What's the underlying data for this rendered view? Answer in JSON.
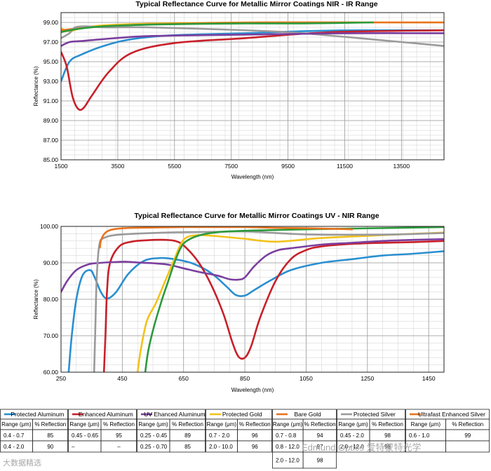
{
  "charts": [
    {
      "title": "Typical Reflectance Curve for Metallic Mirror Coatings NIR - IR Range",
      "xlabel": "Wavelength (nm)",
      "ylabel": "Reflectance (%)",
      "xlim": [
        1500,
        15000
      ],
      "ylim": [
        85,
        100
      ],
      "xticks": [
        "1500",
        "3500",
        "5500",
        "7500",
        "9500",
        "11500",
        "13500"
      ],
      "yticks": [
        "85.00",
        "87.00",
        "89.00",
        "91.00",
        "93.00",
        "95.00",
        "97.00",
        "99.00"
      ]
    },
    {
      "title": "Typical Reflectance Curve for Metallic Mirror Coatings UV - NIR Range",
      "xlabel": "Wavelength (nm)",
      "ylabel": "Reflectance (%)",
      "xlim": [
        250,
        1500
      ],
      "ylim": [
        60,
        100
      ],
      "xticks": [
        "250",
        "450",
        "650",
        "850",
        "1050",
        "1250",
        "1450"
      ],
      "yticks": [
        "60.00",
        "70.00",
        "80.00",
        "90.00",
        "100.00"
      ]
    }
  ],
  "chart_data": [
    {
      "type": "line",
      "title": "Typical Reflectance Curve for Metallic Mirror Coatings NIR - IR Range",
      "xlabel": "Wavelength (nm)",
      "ylabel": "Reflectance (%)",
      "xlim": [
        1500,
        15000
      ],
      "ylim": [
        85,
        100
      ],
      "grid": true,
      "series": [
        {
          "name": "Protected Aluminum",
          "color": "#2a8fd0",
          "x": [
            1500,
            1800,
            2200,
            3000,
            4000,
            5500,
            8000,
            10000,
            12000,
            15000
          ],
          "y": [
            93.0,
            95.0,
            95.7,
            96.6,
            97.3,
            97.7,
            97.9,
            98.1,
            98.2,
            98.2
          ]
        },
        {
          "name": "Enhanced Aluminum",
          "color": "#c8202a",
          "x": [
            1500,
            1700,
            1900,
            2100,
            2300,
            2600,
            3200,
            4000,
            5500,
            8000,
            11000,
            15000
          ],
          "y": [
            96.0,
            94.5,
            91.5,
            90.2,
            90.3,
            91.6,
            94.0,
            95.9,
            96.9,
            97.4,
            98.0,
            98.2
          ]
        },
        {
          "name": "Protected Gold",
          "color": "#f2c21b",
          "x": [
            1500,
            1800,
            2200,
            3000,
            5000,
            8000,
            12000,
            15000
          ],
          "y": [
            98.4,
            98.1,
            98.4,
            98.7,
            98.9,
            99.0,
            99.0,
            99.0
          ]
        },
        {
          "name": "Bare Gold",
          "color": "#e8731e",
          "x": [
            1500,
            3000,
            6000,
            9000,
            12000,
            15000
          ],
          "y": [
            98.2,
            98.6,
            98.9,
            99.0,
            99.0,
            99.0
          ]
        },
        {
          "name": "Protected Silver",
          "color": "#9a9a9a",
          "x": [
            1500,
            1800,
            2000,
            2400,
            3000,
            4500,
            7000,
            9500,
            12000,
            15000
          ],
          "y": [
            97.4,
            97.9,
            98.5,
            98.6,
            98.5,
            98.5,
            98.3,
            98.0,
            97.4,
            96.6
          ]
        },
        {
          "name": "UV Enhanced Aluminum",
          "color": "#7b3f9e",
          "x": [
            1500,
            1800,
            2200,
            3000,
            4500,
            6500,
            9000,
            12000,
            15000
          ],
          "y": [
            96.6,
            97.0,
            97.1,
            97.3,
            97.6,
            97.7,
            97.8,
            97.9,
            97.9
          ]
        },
        {
          "name": "Ultrafast Enhanced Silver",
          "color": "#2c9a3c",
          "x": [
            1500,
            2000,
            3000,
            5000,
            8000,
            10000,
            12500
          ],
          "y": [
            98.0,
            98.3,
            98.6,
            98.8,
            98.9,
            98.9,
            99.0
          ]
        }
      ]
    },
    {
      "type": "line",
      "title": "Typical Reflectance Curve for Metallic Mirror Coatings UV - NIR Range",
      "xlabel": "Wavelength (nm)",
      "ylabel": "Reflectance (%)",
      "xlim": [
        250,
        1500
      ],
      "ylim": [
        60,
        100
      ],
      "grid": true,
      "series": [
        {
          "name": "Protected Aluminum",
          "color": "#2a8fd0",
          "x": [
            275,
            285,
            300,
            320,
            345,
            360,
            380,
            400,
            430,
            470,
            520,
            570,
            620,
            680,
            740,
            790,
            820,
            850,
            880,
            930,
            1000,
            1100,
            1200,
            1300,
            1400,
            1500
          ],
          "y": [
            60,
            70,
            80,
            86.5,
            88,
            86,
            82,
            80.2,
            82,
            87,
            90.5,
            91.3,
            91,
            89.8,
            87.2,
            83.5,
            81.2,
            81.0,
            82.5,
            85,
            88,
            90,
            91,
            92,
            92.5,
            93.2
          ]
        },
        {
          "name": "Enhanced Aluminum",
          "color": "#c8202a",
          "x": [
            390,
            395,
            400,
            410,
            440,
            480,
            530,
            590,
            630,
            660,
            700,
            740,
            780,
            810,
            830,
            850,
            870,
            900,
            950,
            1000,
            1050,
            1100,
            1200,
            1300,
            1400,
            1500
          ],
          "y": [
            60,
            70,
            82,
            90,
            94.5,
            95.8,
            96.2,
            96.3,
            95.8,
            94,
            90,
            84,
            76,
            68,
            64.2,
            64,
            67,
            75,
            85,
            91,
            93.5,
            94.5,
            95.2,
            95.5,
            95.7,
            96
          ]
        },
        {
          "name": "UV Enhanced Aluminum",
          "color": "#7b3f9e",
          "x": [
            250,
            270,
            300,
            340,
            380,
            420,
            460,
            500,
            550,
            600,
            650,
            700,
            760,
            800,
            830,
            850,
            880,
            920,
            960,
            1000,
            1100,
            1200,
            1300,
            1400,
            1500
          ],
          "y": [
            82,
            85,
            88,
            89.6,
            90,
            90.2,
            90.3,
            90.1,
            89.9,
            89.5,
            88.5,
            87.5,
            86.5,
            85.5,
            85.4,
            86,
            89,
            92,
            93.5,
            94,
            95,
            95.5,
            96,
            96.3,
            96.5
          ]
        },
        {
          "name": "Protected Gold",
          "color": "#f2c21b",
          "x": [
            500,
            510,
            530,
            560,
            590,
            620,
            640,
            660,
            700,
            760,
            850,
            950,
            1100,
            1300,
            1500
          ],
          "y": [
            60,
            66,
            74,
            79,
            85,
            91,
            95,
            97,
            97.6,
            97.3,
            96.6,
            95.8,
            96.8,
            97.6,
            98.3
          ]
        },
        {
          "name": "Protected Silver",
          "color": "#9a9a9a",
          "x": [
            358,
            362,
            366,
            372,
            378,
            385,
            395,
            410,
            450,
            550,
            650,
            750,
            850,
            950,
            1050,
            1200,
            1350,
            1500
          ],
          "y": [
            60,
            72,
            85,
            93,
            96,
            96.6,
            97,
            97.4,
            97.8,
            98.2,
            98.4,
            98.5,
            98.6,
            98.2,
            97.8,
            97.7,
            97.8,
            98.2
          ]
        },
        {
          "name": "Ultrafast Enhanced Silver",
          "color": "#2c9a3c",
          "x": [
            525,
            535,
            555,
            580,
            600,
            620,
            640,
            660,
            700,
            760,
            850,
            950,
            1050,
            1200,
            1350,
            1500
          ],
          "y": [
            60,
            66,
            73,
            80,
            85,
            90,
            94,
            96,
            97.5,
            98.4,
            98.8,
            99,
            99.2,
            99.4,
            99.6,
            99.8
          ]
        },
        {
          "name": "Bare Gold",
          "color": "#e8731e",
          "x": [
            377,
            380,
            390,
            405,
            430,
            480,
            560,
            650,
            750,
            850,
            950,
            1050,
            1150,
            1200
          ],
          "y": [
            94.2,
            96,
            97.8,
            98.8,
            99.3,
            99.6,
            99.7,
            99.8,
            99.8,
            99.8,
            99.6,
            99.5,
            99.3,
            99.2
          ]
        }
      ]
    }
  ],
  "table": [
    {
      "name": "Protected Aluminum",
      "color": "#2a8fd0",
      "rows": [
        [
          "0.4 - 0.7",
          "85"
        ],
        [
          "0.4 - 2.0",
          "90"
        ]
      ]
    },
    {
      "name": "Enhanced Aluminum",
      "color": "#c8202a",
      "rows": [
        [
          "0.45 - 0.65",
          "95"
        ],
        [
          "–",
          "–"
        ]
      ]
    },
    {
      "name": "UV Ehanced Aluminum",
      "color": "#7b3f9e",
      "rows": [
        [
          "0.25 - 0.45",
          "89"
        ],
        [
          "0.25 - 0.70",
          "85"
        ]
      ]
    },
    {
      "name": "Protected Gold",
      "color": "#f2c21b",
      "rows": [
        [
          "0.7 - 2.0",
          "96"
        ],
        [
          "2.0 - 10.0",
          "96"
        ]
      ]
    },
    {
      "name": "Bare Gold",
      "color": "#e8731e",
      "rows": [
        [
          "0.7 - 0.8",
          "94"
        ],
        [
          "0.8 - 12.0",
          "97"
        ],
        [
          "2.0 - 12.0",
          "98"
        ]
      ]
    },
    {
      "name": "Protected Silver",
      "color": "#9a9a9a",
      "rows": [
        [
          "0.45 - 2.0",
          "98"
        ],
        [
          "2.0 - 12.0",
          "98"
        ]
      ]
    },
    {
      "name": "Ultrafast Enhanced Silver",
      "color": "#e8731e",
      "rows": [
        [
          "0.6 - 1.0",
          "99"
        ],
        [
          "",
          ""
        ]
      ]
    }
  ],
  "table_headers": {
    "range": "Range (μm)",
    "reflection": "% Reflection"
  },
  "watermarks": {
    "left": "大数据精选",
    "right": "Edmund Optics 爱特蒙特光学"
  }
}
